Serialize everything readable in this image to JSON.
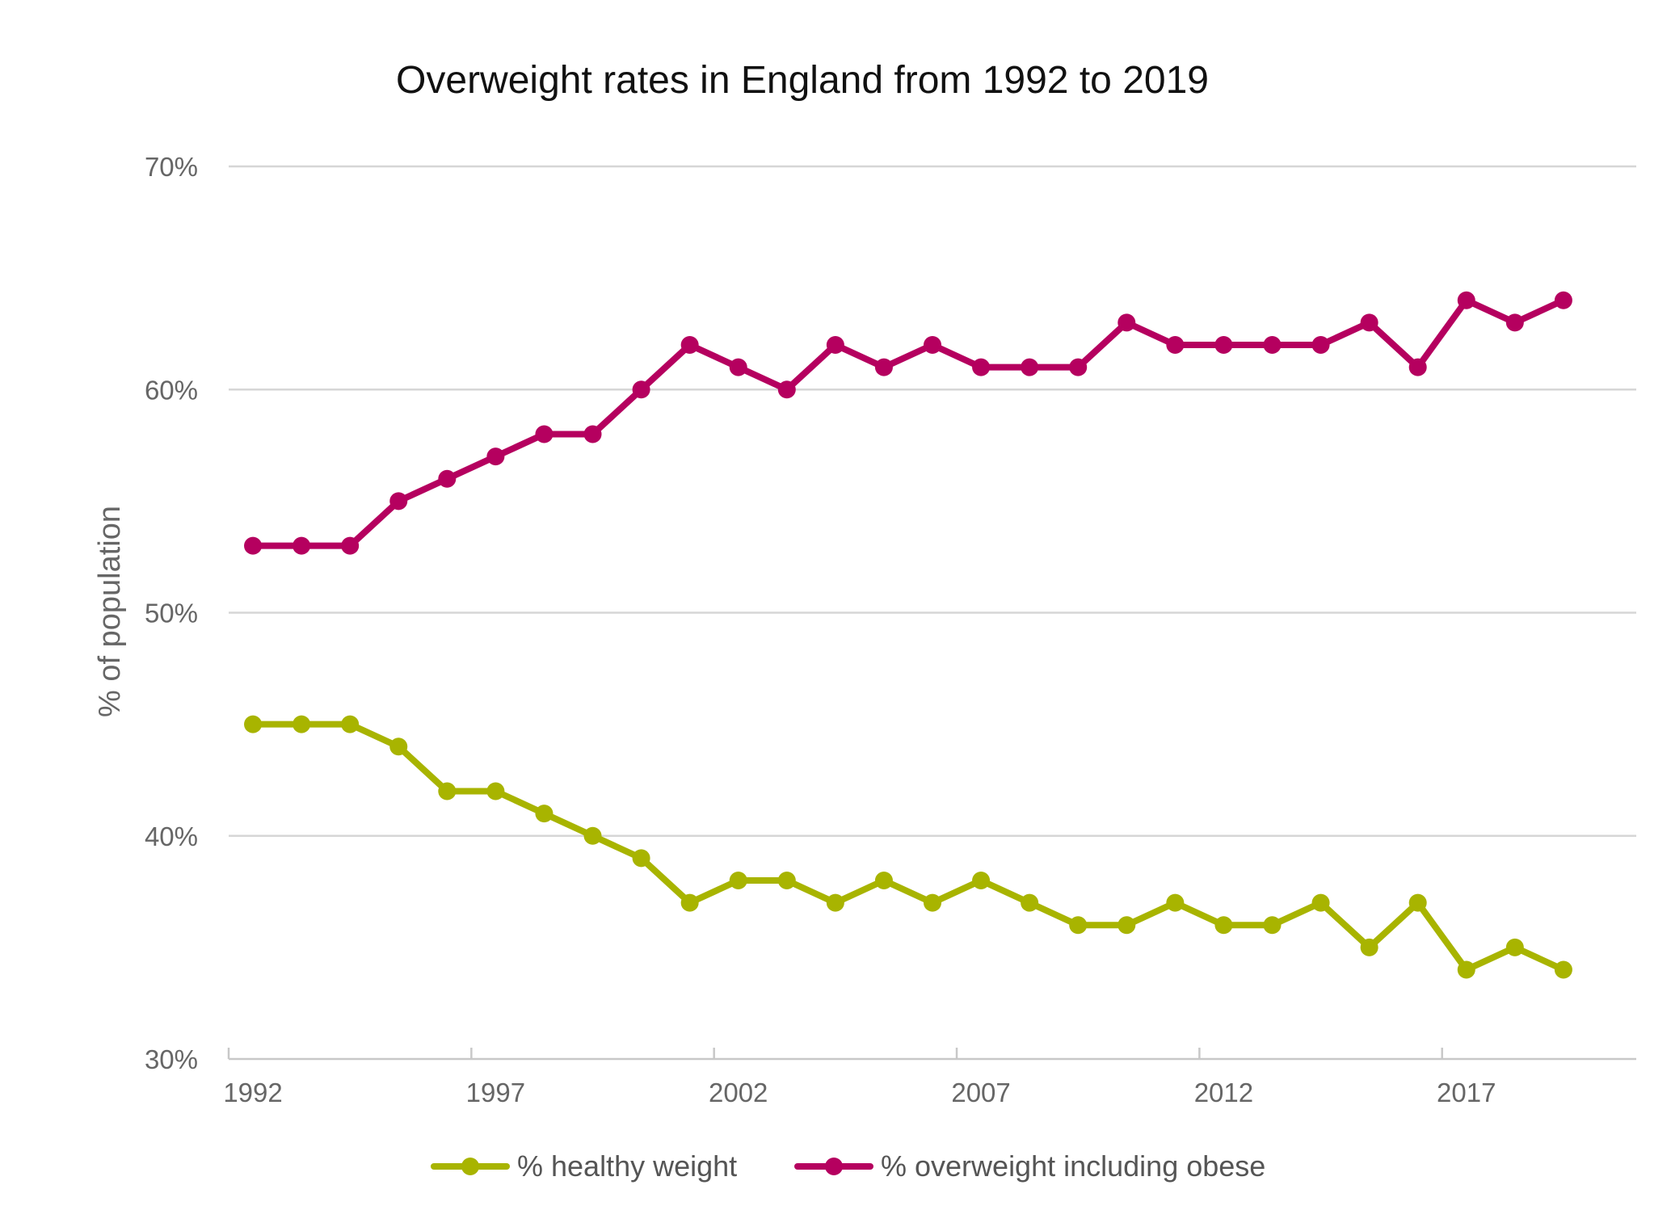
{
  "chart_data": {
    "type": "line",
    "title": "Overweight rates in England from 1992 to 2019",
    "xlabel": "",
    "ylabel": "% of population",
    "x": [
      1992,
      1993,
      1994,
      1995,
      1996,
      1997,
      1998,
      1999,
      2000,
      2001,
      2002,
      2003,
      2004,
      2005,
      2006,
      2007,
      2008,
      2009,
      2010,
      2011,
      2012,
      2013,
      2014,
      2015,
      2016,
      2017,
      2018,
      2019
    ],
    "xlim": [
      1991.5,
      2020.5
    ],
    "xticks": [
      1992,
      1997,
      2002,
      2007,
      2012,
      2017
    ],
    "xtick_labels": [
      "1992",
      "1997",
      "2002",
      "2007",
      "2012",
      "2017"
    ],
    "ylim": [
      30,
      70
    ],
    "yticks": [
      30,
      40,
      50,
      60,
      70
    ],
    "ytick_labels": [
      "30%",
      "40%",
      "50%",
      "60%",
      "70%"
    ],
    "grid": true,
    "legend_position": "bottom-center",
    "series": [
      {
        "name": "% healthy weight",
        "color": "#a8b400",
        "values": [
          45,
          45,
          45,
          44,
          42,
          42,
          41,
          40,
          39,
          37,
          38,
          38,
          37,
          38,
          37,
          38,
          37,
          36,
          36,
          37,
          36,
          36,
          37,
          35,
          37,
          34,
          35,
          34
        ]
      },
      {
        "name": "% overweight including obese",
        "color": "#b5005f",
        "values": [
          53,
          53,
          53,
          55,
          56,
          57,
          58,
          58,
          60,
          62,
          61,
          60,
          62,
          61,
          62,
          61,
          61,
          61,
          63,
          62,
          62,
          62,
          62,
          63,
          61,
          64,
          63,
          64
        ]
      }
    ]
  }
}
